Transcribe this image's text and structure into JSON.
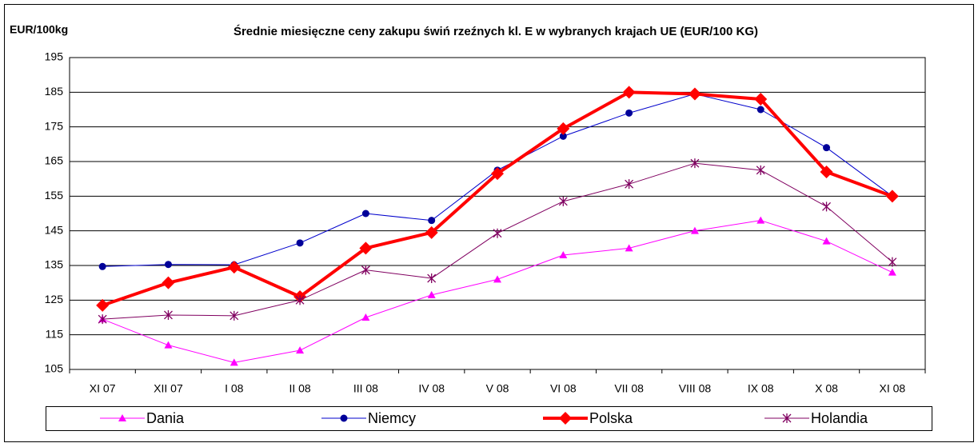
{
  "chart_data": {
    "type": "line",
    "title": "Średnie miesięczne ceny zakupu świń rzeźnych kl. E w wybranych krajach UE (EUR/100 KG)",
    "y_label": "EUR/100kg",
    "categories": [
      "XI 07",
      "XII 07",
      "I 08",
      "II 08",
      "III 08",
      "IV 08",
      "V 08",
      "VI 08",
      "VII 08",
      "VIII 08",
      "IX 08",
      "X 08",
      "XI 08"
    ],
    "series": [
      {
        "name": "Dania",
        "color": "#ff00ff",
        "marker": "triangle",
        "values": [
          119.5,
          112,
          107,
          110.5,
          120,
          126.5,
          131,
          138,
          140,
          145,
          148,
          142,
          133
        ]
      },
      {
        "name": "Niemcy",
        "color": "#000099",
        "marker": "circle",
        "values": [
          134.7,
          135.3,
          135.2,
          141.5,
          150,
          148,
          162.5,
          172.3,
          179,
          184.5,
          180,
          169,
          155
        ]
      },
      {
        "name": "Polska",
        "color": "#ff0000",
        "marker": "diamond",
        "values": [
          123.5,
          130,
          134.5,
          126,
          140,
          144.5,
          161.5,
          174.5,
          185,
          184.5,
          183,
          162,
          155
        ]
      },
      {
        "name": "Holandia",
        "color": "#800060",
        "marker": "star",
        "values": [
          119.5,
          120.7,
          120.5,
          125,
          133.7,
          131.3,
          144.3,
          153.5,
          158.5,
          164.5,
          162.5,
          152,
          136
        ]
      }
    ],
    "ylim": [
      105,
      195
    ],
    "yticks": [
      105,
      115,
      125,
      135,
      145,
      155,
      165,
      175,
      185,
      195
    ],
    "grid": true,
    "legend": "bottom"
  }
}
